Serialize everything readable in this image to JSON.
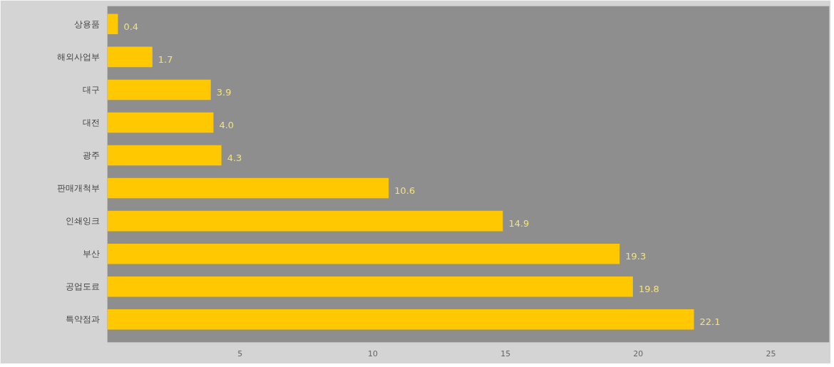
{
  "chart_data": {
    "type": "bar",
    "orientation": "horizontal",
    "categories": [
      "상용품",
      "해외사업부",
      "대구",
      "대전",
      "광주",
      "판매개척부",
      "인쇄잉크",
      "부산",
      "공업도료",
      "특약점과"
    ],
    "values": [
      0.4,
      1.7,
      3.9,
      4.0,
      4.3,
      10.6,
      14.9,
      19.3,
      19.8,
      22.1
    ],
    "value_labels": [
      "0.4",
      "1.7",
      "3.9",
      "4.0",
      "4.3",
      "10.6",
      "14.9",
      "19.3",
      "19.8",
      "22.1"
    ],
    "color": "#ffc800",
    "xlim": [
      0,
      27.2
    ],
    "xticks": [
      5,
      10,
      15,
      20,
      25
    ],
    "grid": false
  }
}
